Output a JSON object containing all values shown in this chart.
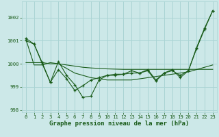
{
  "xlabel": "Graphe pression niveau de la mer (hPa)",
  "background_color": "#cce8e8",
  "grid_color": "#aad4d4",
  "line_color": "#1a5c1a",
  "x_values": [
    0,
    1,
    2,
    3,
    4,
    5,
    6,
    7,
    8,
    9,
    10,
    11,
    12,
    13,
    14,
    15,
    16,
    17,
    18,
    19,
    20,
    21,
    22,
    23
  ],
  "series1_marked": [
    1001.1,
    1000.85,
    1000.0,
    999.2,
    999.75,
    999.35,
    998.85,
    999.05,
    999.3,
    999.4,
    999.5,
    999.55,
    999.55,
    999.6,
    999.6,
    999.7,
    999.25,
    999.6,
    999.75,
    999.4,
    999.7,
    1000.65,
    1001.5,
    1002.3
  ],
  "series2_smooth": [
    1001.05,
    999.95,
    999.95,
    1000.05,
    1000.0,
    999.8,
    999.6,
    999.5,
    999.4,
    999.35,
    999.3,
    999.3,
    999.3,
    999.3,
    999.35,
    999.4,
    999.45,
    999.5,
    999.55,
    999.6,
    999.65,
    999.75,
    999.85,
    999.95
  ],
  "series3_flat": [
    1000.05,
    1000.05,
    1000.05,
    1000.0,
    1000.0,
    999.95,
    999.9,
    999.85,
    999.82,
    999.8,
    999.78,
    999.77,
    999.76,
    999.76,
    999.76,
    999.76,
    999.76,
    999.76,
    999.76,
    999.76,
    999.76,
    999.76,
    999.76,
    999.76
  ],
  "series4_marked": [
    1001.0,
    1000.85,
    1000.05,
    999.2,
    1000.1,
    999.5,
    999.1,
    998.55,
    998.6,
    999.3,
    999.5,
    999.5,
    999.55,
    999.7,
    999.6,
    999.75,
    999.3,
    999.6,
    999.7,
    999.5,
    999.7,
    1000.7,
    1001.55,
    1002.3
  ],
  "ylim": [
    997.9,
    1002.7
  ],
  "yticks": [
    998,
    999,
    1000,
    1001,
    1002
  ],
  "xticks": [
    0,
    1,
    2,
    3,
    4,
    5,
    6,
    7,
    8,
    9,
    10,
    11,
    12,
    13,
    14,
    15,
    16,
    17,
    18,
    19,
    20,
    21,
    22,
    23
  ],
  "tick_fontsize": 5.2,
  "xlabel_fontsize": 6.5,
  "tick_color": "#1a5c1a"
}
